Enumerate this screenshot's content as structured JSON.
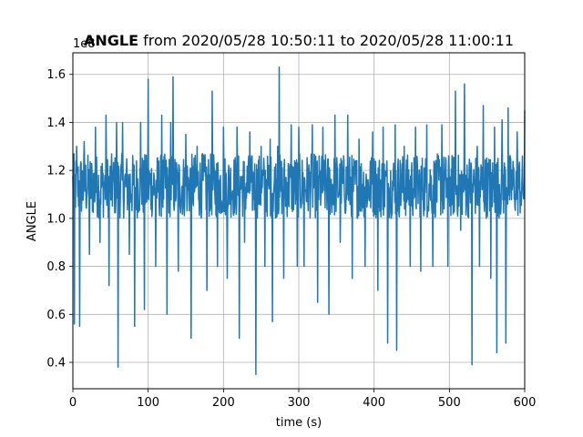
{
  "chart_data": {
    "type": "line",
    "title_bold": "ANGLE",
    "title_rest": " from 2020/05/28 10:50:11 to 2020/05/28 11:00:11",
    "xlabel": "time (s)",
    "ylabel": "ANGLE",
    "y_offset_label": "1e8",
    "xlim": [
      0,
      600
    ],
    "ylim": [
      0.29,
      1.69
    ],
    "x_ticks": [
      0,
      100,
      200,
      300,
      400,
      500,
      600
    ],
    "x_tick_labels": [
      "0",
      "100",
      "200",
      "300",
      "400",
      "500",
      "600"
    ],
    "y_ticks": [
      0.4,
      0.6,
      0.8,
      1.0,
      1.2,
      1.4,
      1.6
    ],
    "y_tick_labels": [
      "0.4",
      "0.6",
      "0.8",
      "1.0",
      "1.2",
      "1.4",
      "1.6"
    ],
    "grid": true,
    "line_color": "#1f77b4",
    "series": [
      {
        "baseline": 1.12,
        "spikes": [
          [
            2,
            0.56
          ],
          [
            5,
            1.3
          ],
          [
            9,
            0.55
          ],
          [
            15,
            1.32
          ],
          [
            22,
            0.85
          ],
          [
            30,
            1.38
          ],
          [
            36,
            0.9
          ],
          [
            44,
            1.43
          ],
          [
            48,
            0.72
          ],
          [
            58,
            1.4
          ],
          [
            60,
            0.38
          ],
          [
            66,
            1.4
          ],
          [
            75,
            0.85
          ],
          [
            82,
            0.55
          ],
          [
            90,
            1.4
          ],
          [
            95,
            0.62
          ],
          [
            100,
            1.58
          ],
          [
            110,
            0.8
          ],
          [
            118,
            1.43
          ],
          [
            125,
            0.6
          ],
          [
            130,
            1.4
          ],
          [
            133,
            1.59
          ],
          [
            140,
            0.78
          ],
          [
            150,
            1.35
          ],
          [
            157,
            0.5
          ],
          [
            165,
            1.3
          ],
          [
            172,
            1.27
          ],
          [
            178,
            0.7
          ],
          [
            185,
            1.53
          ],
          [
            192,
            0.8
          ],
          [
            200,
            1.38
          ],
          [
            205,
            0.75
          ],
          [
            218,
            1.38
          ],
          [
            221,
            0.5
          ],
          [
            228,
            0.9
          ],
          [
            235,
            1.36
          ],
          [
            243,
            0.35
          ],
          [
            250,
            1.3
          ],
          [
            255,
            0.8
          ],
          [
            262,
            1.33
          ],
          [
            265,
            0.57
          ],
          [
            272,
            1.3
          ],
          [
            274,
            1.63
          ],
          [
            280,
            0.75
          ],
          [
            290,
            1.39
          ],
          [
            298,
            0.8
          ],
          [
            300,
            1.38
          ],
          [
            307,
            0.8
          ],
          [
            318,
            1.39
          ],
          [
            325,
            0.65
          ],
          [
            332,
            1.38
          ],
          [
            340,
            0.6
          ],
          [
            348,
            1.43
          ],
          [
            355,
            0.9
          ],
          [
            365,
            1.43
          ],
          [
            371,
            0.75
          ],
          [
            380,
            1.33
          ],
          [
            388,
            0.8
          ],
          [
            398,
            1.36
          ],
          [
            405,
            0.7
          ],
          [
            412,
            1.38
          ],
          [
            418,
            0.48
          ],
          [
            428,
            1.39
          ],
          [
            430,
            0.45
          ],
          [
            440,
            1.3
          ],
          [
            448,
            0.8
          ],
          [
            455,
            1.38
          ],
          [
            462,
            0.78
          ],
          [
            470,
            1.39
          ],
          [
            478,
            0.8
          ],
          [
            490,
            1.39
          ],
          [
            498,
            0.8
          ],
          [
            508,
            1.53
          ],
          [
            515,
            0.95
          ],
          [
            520,
            1.56
          ],
          [
            530,
            0.39
          ],
          [
            537,
            1.3
          ],
          [
            540,
            0.8
          ],
          [
            545,
            1.47
          ],
          [
            555,
            0.75
          ],
          [
            560,
            1.38
          ],
          [
            563,
            0.44
          ],
          [
            570,
            1.41
          ],
          [
            575,
            0.48
          ],
          [
            578,
            1.46
          ],
          [
            586,
            1.08
          ],
          [
            590,
            1.36
          ],
          [
            595,
            1.1
          ],
          [
            600,
            1.45
          ]
        ],
        "noise_band": [
          1.0,
          1.27
        ],
        "x_start": 0,
        "x_end": 600,
        "sample_step": 0.5
      }
    ]
  }
}
